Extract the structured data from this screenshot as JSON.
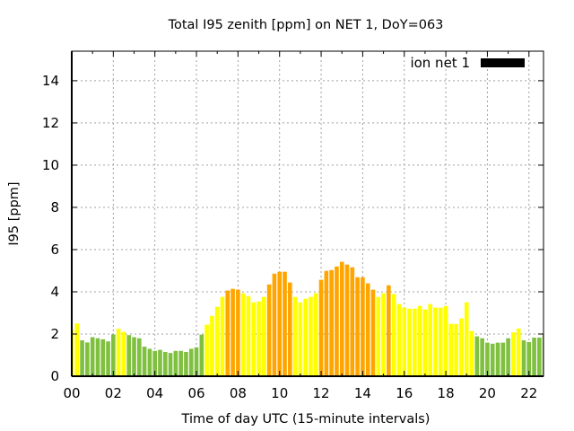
{
  "chart_data": {
    "type": "bar",
    "title": "Total I95 zenith [ppm] on NET 1, DoY=063",
    "xlabel": "Time of day UTC (15-minute intervals)",
    "ylabel": "I95 [ppm]",
    "xlim": [
      0,
      22.7
    ],
    "ylim": [
      0,
      15.4
    ],
    "grid": true,
    "x_ticks": [
      0,
      2,
      4,
      6,
      8,
      10,
      12,
      14,
      16,
      18,
      20,
      22
    ],
    "x_tick_labels": [
      "00",
      "02",
      "04",
      "06",
      "08",
      "10",
      "12",
      "14",
      "16",
      "18",
      "20",
      "22"
    ],
    "y_ticks": [
      0,
      2,
      4,
      6,
      8,
      10,
      12,
      14
    ],
    "y_tick_labels": [
      "0",
      "2",
      "4",
      "6",
      "8",
      "10",
      "12",
      "14"
    ],
    "legend": {
      "placement": "top-right",
      "entries": [
        {
          "label": "ion net 1",
          "color": "#000000"
        }
      ]
    },
    "bar_interval_hours": 0.25,
    "color_thresholds": {
      "green_below": 2,
      "orange_from": 4
    },
    "colors": {
      "green": "#80c040",
      "yellow": "#ffff00",
      "orange": "#ffa500"
    },
    "series": [
      {
        "name": "ion net 1",
        "x_start": 0,
        "values": [
          2.2,
          2.5,
          1.7,
          1.6,
          1.85,
          1.8,
          1.75,
          1.65,
          1.98,
          2.25,
          2.1,
          1.95,
          1.85,
          1.8,
          1.4,
          1.3,
          1.2,
          1.25,
          1.15,
          1.1,
          1.2,
          1.2,
          1.15,
          1.3,
          1.37,
          1.97,
          2.44,
          2.86,
          3.29,
          3.76,
          4.06,
          4.14,
          4.1,
          3.93,
          3.8,
          3.5,
          3.54,
          3.76,
          4.35,
          4.86,
          4.95,
          4.95,
          4.44,
          3.76,
          3.5,
          3.67,
          3.76,
          3.93,
          4.57,
          4.99,
          5.03,
          5.2,
          5.42,
          5.29,
          5.16,
          4.69,
          4.69,
          4.4,
          4.1,
          3.76,
          3.93,
          4.31,
          3.89,
          3.42,
          3.25,
          3.2,
          3.2,
          3.33,
          3.16,
          3.42,
          3.25,
          3.25,
          3.33,
          2.48,
          2.48,
          2.74,
          3.5,
          2.14,
          1.89,
          1.8,
          1.59,
          1.54,
          1.59,
          1.59,
          1.8,
          2.08,
          2.26,
          1.7,
          1.62,
          1.83,
          1.83,
          1.97
        ]
      }
    ]
  }
}
